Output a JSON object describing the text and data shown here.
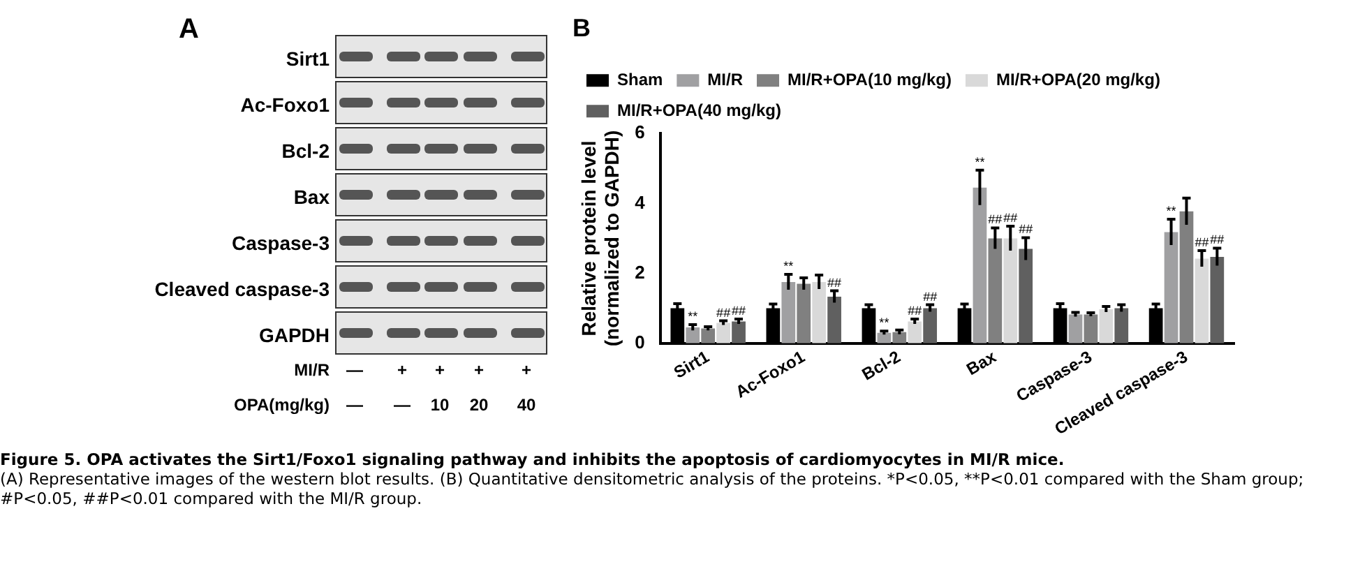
{
  "chart_data": [
    {
      "type": "other",
      "title": "A",
      "annotations": [
        "Sirt1",
        "Ac-Foxo1",
        "Bcl-2",
        "Bax",
        "Caspase-3",
        "Cleaved caspase-3",
        "GAPDH",
        "MI/R",
        "—",
        "+",
        "+",
        "+",
        "+",
        "OPA(mg/kg)",
        "—",
        "—",
        "10",
        "20",
        "40"
      ]
    },
    {
      "type": "bar",
      "title": "B",
      "ylabel": "Relative protein level\n(normalized to GAPDH)",
      "categories": [
        "Sirt1",
        "Ac-Foxo1",
        "Bcl-2",
        "Bax",
        "Caspase-3",
        "Cleaved caspase-3"
      ],
      "series": [
        {
          "name": "Sham",
          "color": "#000000",
          "values": [
            1.0,
            1.0,
            1.0,
            1.0,
            1.0,
            1.0
          ],
          "errors": [
            0.13,
            0.12,
            0.1,
            0.12,
            0.13,
            0.12
          ],
          "value_labels": [
            null,
            null,
            null,
            null,
            null,
            null
          ]
        },
        {
          "name": "MI/R",
          "color": "#a0a0a2",
          "values": [
            0.45,
            1.75,
            0.3,
            4.45,
            0.82,
            3.18
          ],
          "errors": [
            0.08,
            0.22,
            0.05,
            0.5,
            0.06,
            0.37
          ],
          "value_labels": [
            "**",
            "**",
            "**",
            "**",
            null,
            "**"
          ]
        },
        {
          "name": "MI/R+OPA(10 mg/kg)",
          "color": "#808080",
          "values": [
            0.42,
            1.7,
            0.32,
            3.0,
            0.82,
            3.77
          ],
          "errors": [
            0.05,
            0.17,
            0.06,
            0.3,
            0.05,
            0.38
          ],
          "value_labels": [
            null,
            null,
            null,
            "##",
            null,
            null
          ]
        },
        {
          "name": "MI/R+OPA(20 mg/kg)",
          "color": "#d9d9d9",
          "values": [
            0.58,
            1.75,
            0.62,
            3.0,
            0.97,
            2.42
          ],
          "errors": [
            0.06,
            0.2,
            0.07,
            0.35,
            0.08,
            0.23
          ],
          "value_labels": [
            "##",
            null,
            "##",
            "##",
            null,
            "##"
          ]
        },
        {
          "name": "MI/R+OPA(40 mg/kg)",
          "color": "#606060",
          "values": [
            0.62,
            1.33,
            1.0,
            2.7,
            1.0,
            2.47
          ],
          "errors": [
            0.07,
            0.17,
            0.1,
            0.32,
            0.1,
            0.25
          ],
          "value_labels": [
            "##",
            "##",
            "##",
            "##",
            null,
            "##"
          ]
        }
      ],
      "ylim": [
        0,
        6
      ],
      "yticks": [
        0,
        2,
        4,
        6
      ],
      "grid": false,
      "legend": "top",
      "annotations": [
        "Figure 5. OPA activates the Sirt1/Foxo1 signaling pathway and inhibits the apoptosis of cardiomyocytes in MI/R mice.",
        "(A) Representative images of the western blot results. (B) Quantitative densitometric analysis of the proteins. *P<0.05, **P<0.01 compared with the Sham group; #P<0.05, ##P<0.01 compared with the MI/R group."
      ]
    }
  ]
}
